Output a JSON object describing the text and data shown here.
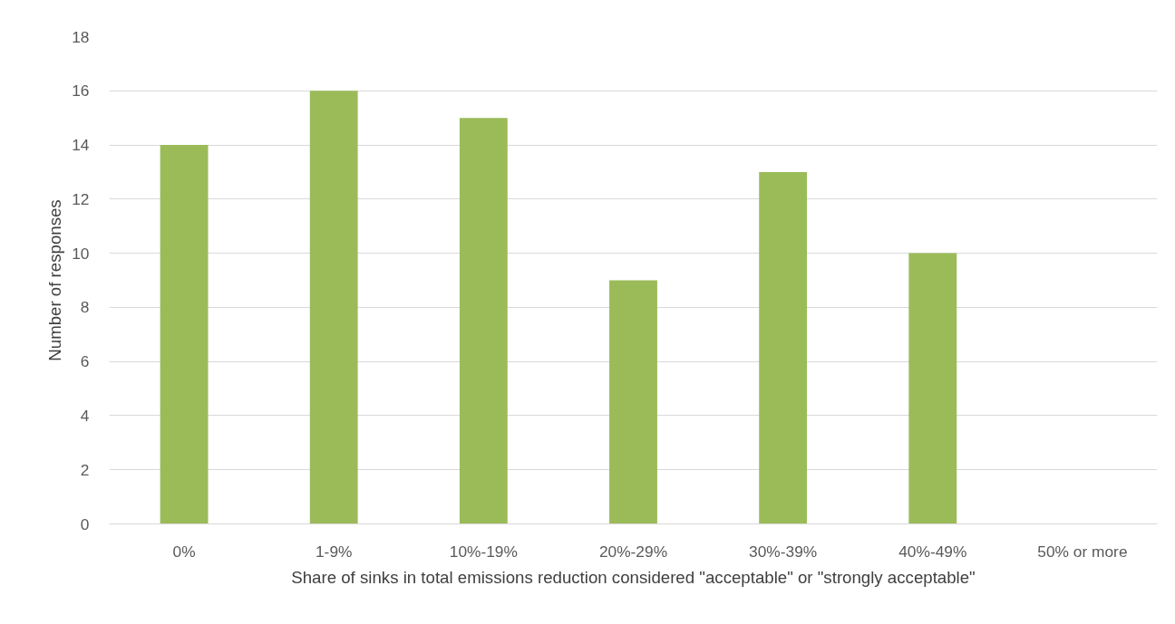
{
  "chart_data": {
    "type": "bar",
    "xlabel": "Share of sinks in total emissions reduction considered \"acceptable\" or \"strongly acceptable\"",
    "ylabel": "Number of responses",
    "categories": [
      "0%",
      "1-9%",
      "10%-19%",
      "20%-29%",
      "30%-39%",
      "40%-49%",
      "50% or more"
    ],
    "values": [
      14,
      16,
      15,
      9,
      13,
      10,
      0
    ],
    "color": "#9bbb59",
    "ylim": [
      0,
      18
    ],
    "yticks": [
      0,
      2,
      4,
      6,
      8,
      10,
      12,
      14,
      16,
      18
    ],
    "grid": "y"
  }
}
